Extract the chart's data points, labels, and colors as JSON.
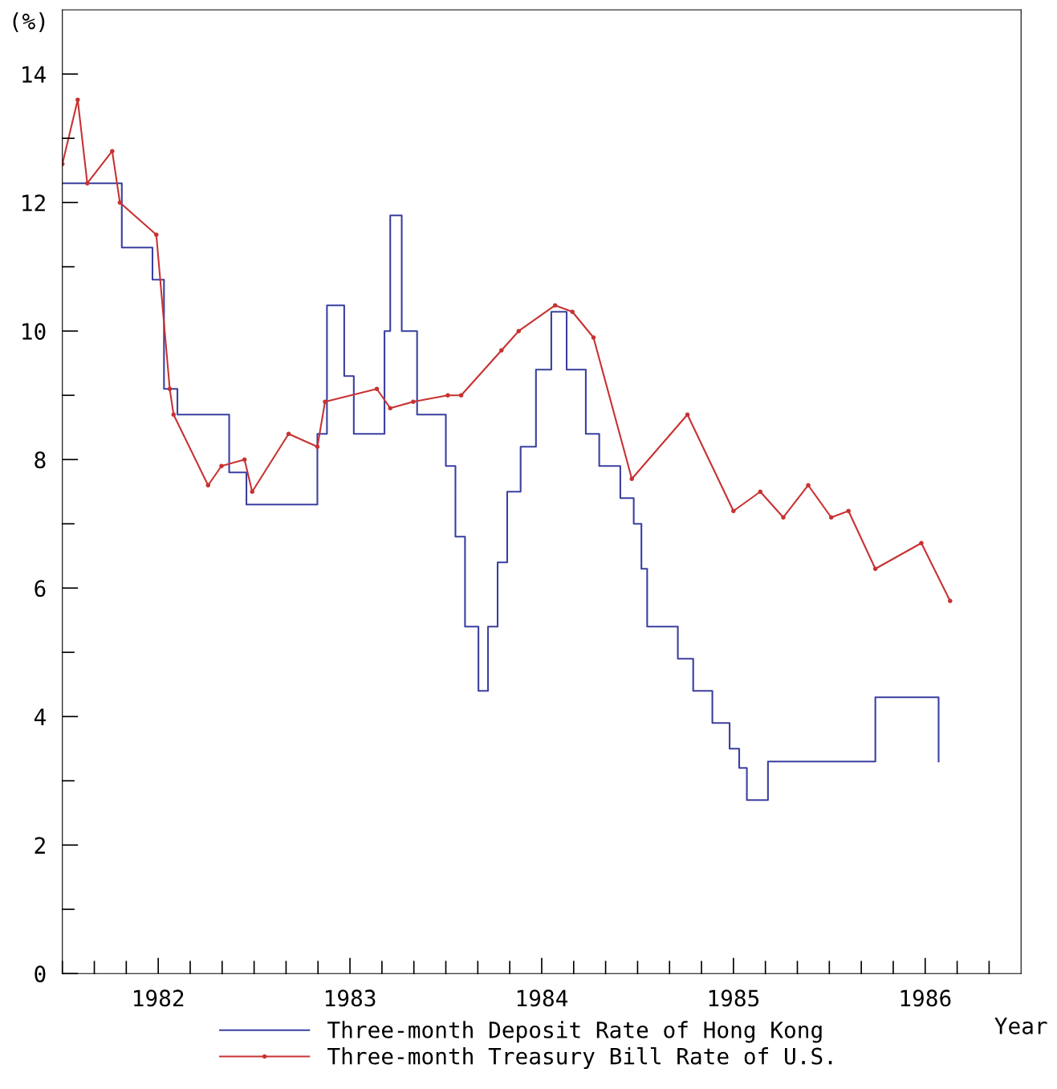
{
  "chart_data": {
    "type": "line",
    "ylabel": "(%)",
    "xlabel": "Year",
    "xlim": [
      1982,
      1987
    ],
    "ylim": [
      0,
      15
    ],
    "xticks": [
      {
        "value": 1982.0,
        "label": null
      },
      {
        "value": 1982.1667,
        "label": null
      },
      {
        "value": 1982.3333,
        "label": null
      },
      {
        "value": 1982.5,
        "label": "1982"
      },
      {
        "value": 1982.6667,
        "label": null
      },
      {
        "value": 1982.8333,
        "label": null
      },
      {
        "value": 1983.0,
        "label": null
      },
      {
        "value": 1983.1667,
        "label": null
      },
      {
        "value": 1983.3333,
        "label": null
      },
      {
        "value": 1983.5,
        "label": "1983"
      },
      {
        "value": 1983.6667,
        "label": null
      },
      {
        "value": 1983.8333,
        "label": null
      },
      {
        "value": 1984.0,
        "label": null
      },
      {
        "value": 1984.1667,
        "label": null
      },
      {
        "value": 1984.3333,
        "label": null
      },
      {
        "value": 1984.5,
        "label": "1984"
      },
      {
        "value": 1984.6667,
        "label": null
      },
      {
        "value": 1984.8333,
        "label": null
      },
      {
        "value": 1985.0,
        "label": null
      },
      {
        "value": 1985.1667,
        "label": null
      },
      {
        "value": 1985.3333,
        "label": null
      },
      {
        "value": 1985.5,
        "label": "1985"
      },
      {
        "value": 1985.6667,
        "label": null
      },
      {
        "value": 1985.8333,
        "label": null
      },
      {
        "value": 1986.0,
        "label": null
      },
      {
        "value": 1986.1667,
        "label": null
      },
      {
        "value": 1986.3333,
        "label": null
      },
      {
        "value": 1986.5,
        "label": "1986"
      },
      {
        "value": 1986.6667,
        "label": null
      },
      {
        "value": 1986.8333,
        "label": null
      }
    ],
    "yticks": [
      0,
      {
        "value": 1,
        "label": null
      },
      2,
      {
        "value": 3,
        "label": null
      },
      4,
      {
        "value": 5,
        "label": null
      },
      6,
      {
        "value": 7,
        "label": null
      },
      8,
      {
        "value": 9,
        "label": null
      },
      10,
      {
        "value": 11,
        "label": null
      },
      12,
      {
        "value": 13,
        "label": null
      },
      14
    ],
    "grid": false,
    "legend": "bottom",
    "series": [
      {
        "name": "Three-month Deposit Rate of Hong Kong",
        "type": "step",
        "color": "#3a3fa0",
        "marker": "none",
        "x": [
          1982.0,
          1982.31,
          1982.47,
          1982.53,
          1982.6,
          1982.87,
          1982.96,
          1983.33,
          1983.38,
          1983.47,
          1983.52,
          1983.68,
          1983.71,
          1983.77,
          1983.85,
          1984.0,
          1984.05,
          1984.1,
          1984.17,
          1984.22,
          1984.27,
          1984.32,
          1984.39,
          1984.47,
          1984.55,
          1984.63,
          1984.73,
          1984.8,
          1984.91,
          1984.98,
          1985.02,
          1985.05,
          1985.21,
          1985.29,
          1985.39,
          1985.48,
          1985.53,
          1985.57,
          1985.68,
          1986.24,
          1986.57
        ],
        "values": [
          12.3,
          11.3,
          10.8,
          9.1,
          8.7,
          7.8,
          7.3,
          8.4,
          10.4,
          9.3,
          8.4,
          10.0,
          11.8,
          10.0,
          8.7,
          7.9,
          6.8,
          5.4,
          4.4,
          5.4,
          6.4,
          7.5,
          8.2,
          9.4,
          10.3,
          9.4,
          8.4,
          7.9,
          7.4,
          7.0,
          6.3,
          5.4,
          4.9,
          4.4,
          3.9,
          3.5,
          3.2,
          2.7,
          3.3,
          4.3,
          3.3
        ]
      },
      {
        "name": "Three-month Treasury Bill Rate of U.S.",
        "type": "line",
        "color": "#c83232",
        "marker": "circle",
        "x": [
          1982.0,
          1982.08,
          1982.13,
          1982.26,
          1982.3,
          1982.49,
          1982.56,
          1982.58,
          1982.76,
          1982.83,
          1982.95,
          1982.99,
          1983.18,
          1983.33,
          1983.37,
          1983.64,
          1983.71,
          1983.83,
          1984.01,
          1984.08,
          1984.29,
          1984.38,
          1984.57,
          1984.66,
          1984.77,
          1984.97,
          1985.26,
          1985.5,
          1985.64,
          1985.76,
          1985.89,
          1986.01,
          1986.1,
          1986.24,
          1986.48,
          1986.63
        ],
        "values": [
          12.6,
          13.6,
          12.3,
          12.8,
          12.0,
          11.5,
          9.1,
          8.7,
          7.6,
          7.9,
          8.0,
          7.5,
          8.4,
          8.2,
          8.9,
          9.1,
          8.8,
          8.9,
          9.0,
          9.0,
          9.7,
          10.0,
          10.4,
          10.3,
          9.9,
          7.7,
          8.7,
          7.2,
          7.5,
          7.1,
          7.6,
          7.1,
          7.2,
          6.3,
          6.7,
          5.8
        ]
      }
    ]
  }
}
